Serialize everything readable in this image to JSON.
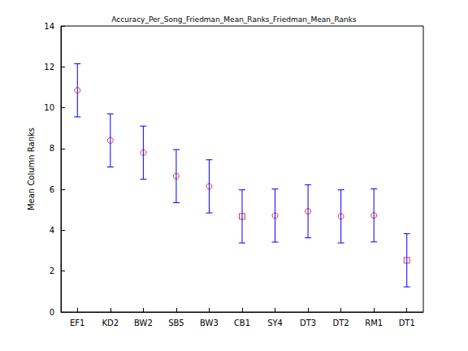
{
  "chart_data": {
    "type": "scatter",
    "title": "Accuracy_Per_Song_Friedman_Mean_Ranks_Friedman_Mean_Ranks",
    "ylabel": "Mean Column Ranks",
    "categories": [
      "EF1",
      "KD2",
      "BW2",
      "SB5",
      "BW3",
      "CB1",
      "SY4",
      "DT3",
      "DT2",
      "RM1",
      "DT1"
    ],
    "ylim": [
      0,
      14
    ],
    "yticks": [
      0,
      2,
      4,
      6,
      8,
      10,
      12,
      14
    ],
    "grid": false,
    "series": [
      {
        "marker": "circle",
        "color": "#cc0033",
        "values": [
          10.85,
          8.4,
          7.8,
          6.65,
          6.15,
          null,
          4.72,
          4.93,
          4.68,
          4.73,
          null
        ],
        "error_low": [
          9.55,
          7.1,
          6.5,
          5.35,
          4.85,
          null,
          3.42,
          3.63,
          3.38,
          3.43,
          null
        ],
        "error_high": [
          12.15,
          9.7,
          9.1,
          7.95,
          7.45,
          null,
          6.02,
          6.23,
          5.98,
          6.03,
          null
        ]
      },
      {
        "marker": "square",
        "color": "#cc0033",
        "values": [
          null,
          null,
          null,
          null,
          null,
          4.68,
          null,
          null,
          null,
          null,
          2.53
        ],
        "error_low": [
          null,
          null,
          null,
          null,
          null,
          3.38,
          null,
          null,
          null,
          null,
          1.23
        ],
        "error_high": [
          null,
          null,
          null,
          null,
          null,
          5.98,
          null,
          null,
          null,
          null,
          3.83
        ]
      }
    ]
  }
}
